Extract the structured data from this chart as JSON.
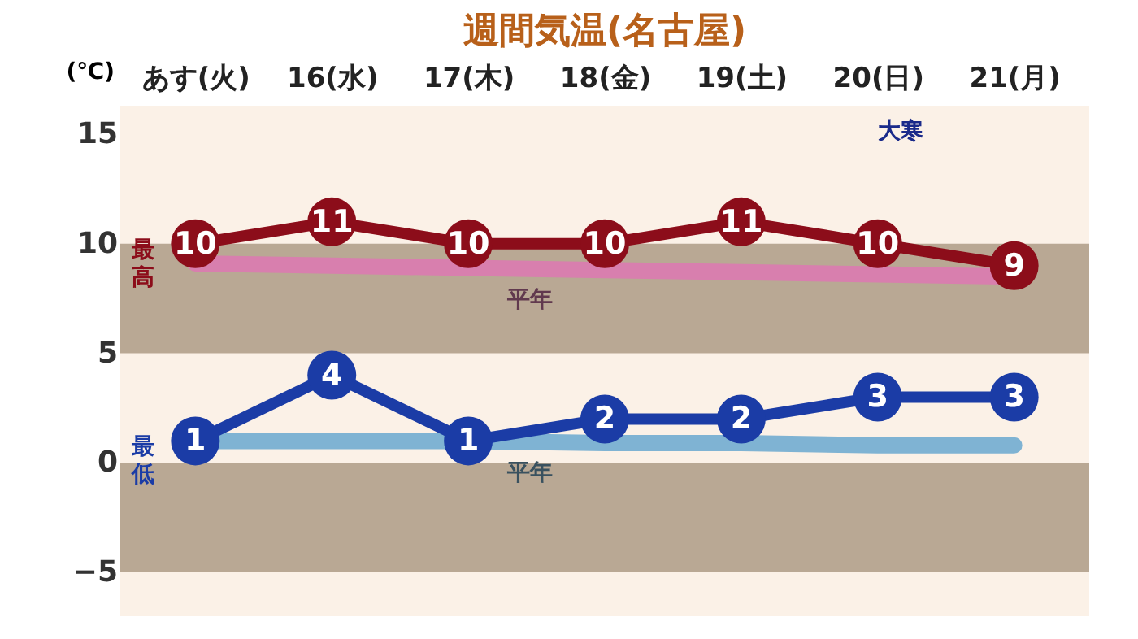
{
  "chart_data": {
    "type": "line",
    "title": "週間気温(名古屋)",
    "ylabel": "(℃)",
    "categories": [
      "あす(火)",
      "16(水)",
      "17(木)",
      "18(金)",
      "19(土)",
      "20(日)",
      "21(月)"
    ],
    "series": [
      {
        "name": "平年",
        "color": "#d87fae",
        "marker": "none",
        "values": [
          9.1,
          9,
          8.9,
          8.8,
          8.7,
          8.6,
          8.5
        ]
      },
      {
        "name": "平年",
        "color": "#7fb3d3",
        "marker": "none",
        "values": [
          1,
          1,
          1,
          0.9,
          0.9,
          0.8,
          0.8
        ]
      },
      {
        "name": "最高",
        "color": "#8c0d1a",
        "marker": "circle",
        "values": [
          10,
          11,
          10,
          10,
          11,
          10,
          9
        ],
        "value_labels": [
          "10",
          "11",
          "10",
          "10",
          "11",
          "10",
          "9"
        ]
      },
      {
        "name": "最低",
        "color": "#1b3ca6",
        "marker": "circle",
        "values": [
          1,
          4,
          1,
          2,
          2,
          3,
          3
        ],
        "value_labels": [
          "1",
          "4",
          "1",
          "2",
          "2",
          "3",
          "3"
        ]
      }
    ],
    "ylim": [
      -7,
      16.3
    ],
    "yticks": [
      15,
      10,
      5,
      0,
      {
        "value": -5,
        "label": "−5"
      }
    ],
    "bands": [
      {
        "axis": "y",
        "from": 5,
        "to": 10,
        "color": "#b9a894"
      },
      {
        "axis": "y",
        "from": -5,
        "to": 0,
        "color": "#b9a894"
      }
    ],
    "annotations": [
      "大寒"
    ],
    "grid": false
  }
}
